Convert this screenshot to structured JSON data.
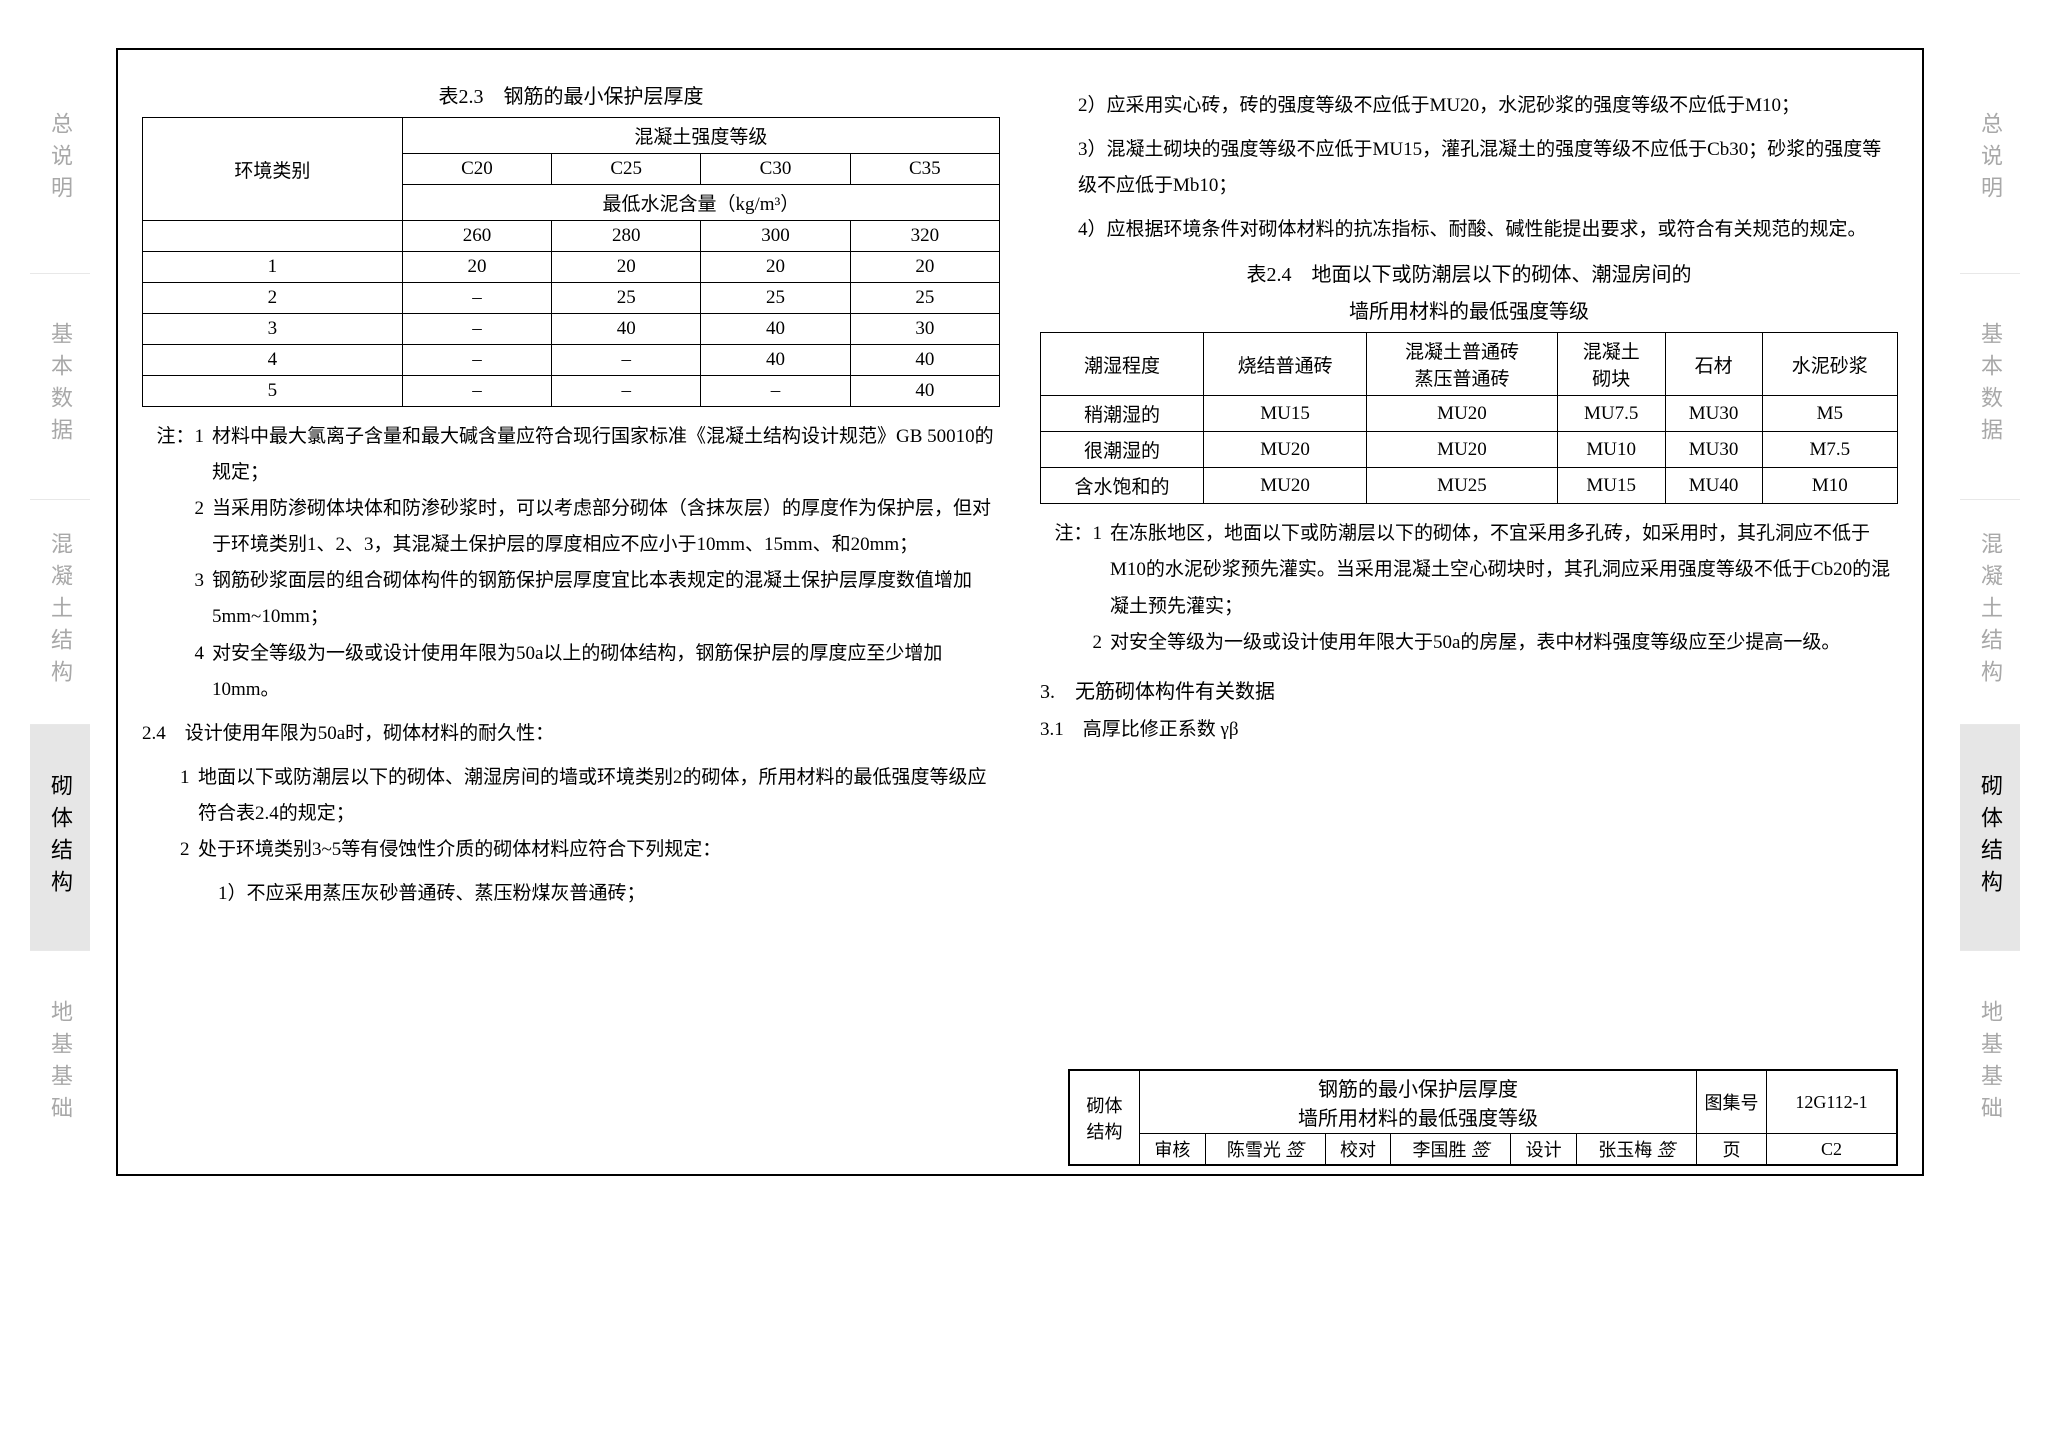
{
  "sideTabs": [
    "总说明",
    "基本数据",
    "混凝土结构",
    "砌体结构",
    "地基基础"
  ],
  "activeTabIndex": 3,
  "table23": {
    "title": "表2.3　钢筋的最小保护层厚度",
    "header1": "混凝土强度等级",
    "envLabel": "环境类别",
    "grades": [
      "C20",
      "C25",
      "C30",
      "C35"
    ],
    "header2": "最低水泥含量（kg/m³）",
    "cement": [
      "260",
      "280",
      "300",
      "320"
    ],
    "rows": [
      [
        "1",
        "20",
        "20",
        "20",
        "20"
      ],
      [
        "2",
        "–",
        "25",
        "25",
        "25"
      ],
      [
        "3",
        "–",
        "40",
        "40",
        "30"
      ],
      [
        "4",
        "–",
        "–",
        "40",
        "40"
      ],
      [
        "5",
        "–",
        "–",
        "–",
        "40"
      ]
    ]
  },
  "notes23": [
    [
      "注：1",
      "材料中最大氯离子含量和最大碱含量应符合现行国家标准《混凝土结构设计规范》GB 50010的规定；"
    ],
    [
      "2",
      "当采用防渗砌体块体和防渗砂浆时，可以考虑部分砌体（含抹灰层）的厚度作为保护层，但对于环境类别1、2、3，其混凝土保护层的厚度相应不应小于10mm、15mm、和20mm；"
    ],
    [
      "3",
      "钢筋砂浆面层的组合砌体构件的钢筋保护层厚度宜比本表规定的混凝土保护层厚度数值增加5mm~10mm；"
    ],
    [
      "4",
      "对安全等级为一级或设计使用年限为50a以上的砌体结构，钢筋保护层的厚度应至少增加10mm。"
    ]
  ],
  "section24Title": "2.4　设计使用年限为50a时，砌体材料的耐久性：",
  "section24Items": [
    [
      "1",
      "地面以下或防潮层以下的砌体、潮湿房间的墙或环境类别2的砌体，所用材料的最低强度等级应符合表2.4的规定；"
    ],
    [
      "2",
      "处于环境类别3~5等有侵蚀性介质的砌体材料应符合下列规定："
    ]
  ],
  "section24Sub": [
    "1）不应采用蒸压灰砂普通砖、蒸压粉煤灰普通砖；",
    "2）应采用实心砖，砖的强度等级不应低于MU20，水泥砂浆的强度等级不应低于M10；",
    "3）混凝土砌块的强度等级不应低于MU15，灌孔混凝土的强度等级不应低于Cb30；砂浆的强度等级不应低于Mb10；",
    "4）应根据环境条件对砌体材料的抗冻指标、耐酸、碱性能提出要求，或符合有关规范的规定。"
  ],
  "table24": {
    "title1": "表2.4　地面以下或防潮层以下的砌体、潮湿房间的",
    "title2": "墙所用材料的最低强度等级",
    "headers": [
      "潮湿程度",
      "烧结普通砖",
      "混凝土普通砖\n蒸压普通砖",
      "混凝土\n砌块",
      "石材",
      "水泥砂浆"
    ],
    "rows": [
      [
        "稍潮湿的",
        "MU15",
        "MU20",
        "MU7.5",
        "MU30",
        "M5"
      ],
      [
        "很潮湿的",
        "MU20",
        "MU20",
        "MU10",
        "MU30",
        "M7.5"
      ],
      [
        "含水饱和的",
        "MU20",
        "MU25",
        "MU15",
        "MU40",
        "M10"
      ]
    ]
  },
  "notes24": [
    [
      "注：1",
      "在冻胀地区，地面以下或防潮层以下的砌体，不宜采用多孔砖，如采用时，其孔洞应不低于M10的水泥砂浆预先灌实。当采用混凝土空心砌块时，其孔洞应采用强度等级不低于Cb20的混凝土预先灌实；"
    ],
    [
      "2",
      "对安全等级为一级或设计使用年限大于50a的房屋，表中材料强度等级应至少提高一级。"
    ]
  ],
  "section3": "3.　无筋砌体构件有关数据",
  "section31": "3.1　高厚比修正系数 γβ",
  "footer": {
    "cat": "砌体\n结构",
    "mainTitle": "钢筋的最小保护层厚度\n墙所用材料的最低强度等级",
    "codeLabel": "图集号",
    "code": "12G112-1",
    "approve": "审核",
    "approveName": "陈雪光",
    "check": "校对",
    "checkName": "李国胜",
    "design": "设计",
    "designName": "张玉梅",
    "pageLabel": "页",
    "page": "C2"
  }
}
